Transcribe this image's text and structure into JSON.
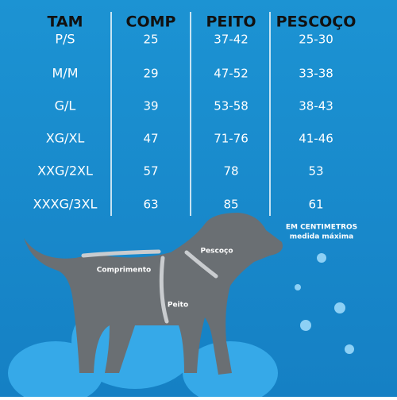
{
  "table": {
    "header": [
      "TAM",
      "COMP",
      "PEITO",
      "PESCOÇO"
    ],
    "rows": [
      [
        "P/S",
        "25",
        "37-42",
        "25-30"
      ],
      [
        "M/M",
        "29",
        "47-52",
        "33-38"
      ],
      [
        "G/L",
        "39",
        "53-58",
        "38-43"
      ],
      [
        "XG/XL",
        "47",
        "71-76",
        "41-46"
      ],
      [
        "XXG/2XL",
        "57",
        "78",
        "53"
      ],
      [
        "XXXG/3XL",
        "63",
        "85",
        "61"
      ]
    ]
  },
  "note": {
    "line1": "EM CENTIMETROS",
    "line2": "medida máxima"
  },
  "dog": {
    "length_label": "Comprimento",
    "neck_label": "Pescoço",
    "chest_label": "Peito"
  }
}
